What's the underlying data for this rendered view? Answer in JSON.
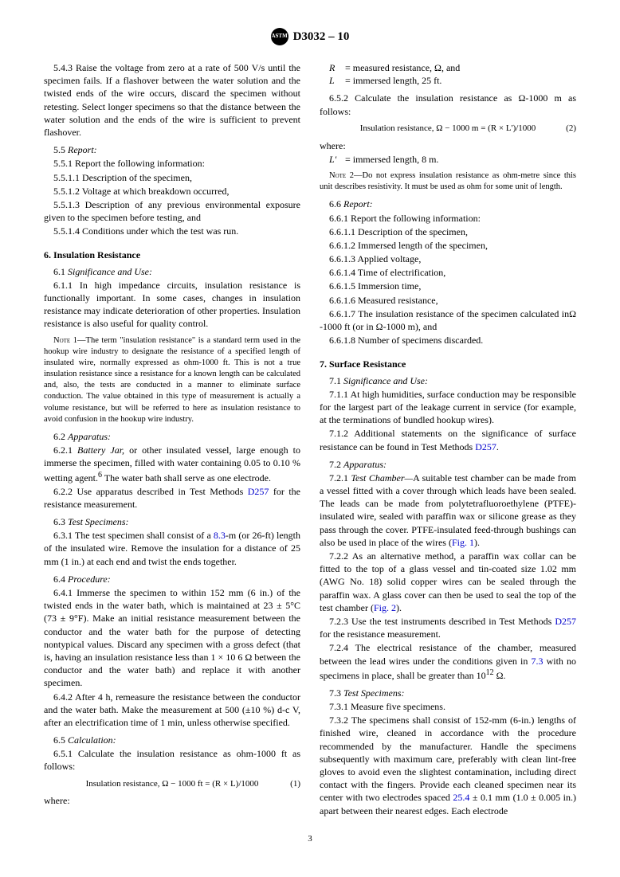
{
  "header": {
    "designation": "D3032 – 10"
  },
  "page_number": "3",
  "col1": {
    "p543": "5.4.3 Raise the voltage from zero at a rate of 500 V/s until the specimen fails. If a flashover between the water solution and the twisted ends of the wire occurs, discard the specimen without retesting. Select longer specimens so that the distance between the water solution and the ends of the wire is sufficient to prevent flashover.",
    "p55": "5.5 ",
    "p55i": "Report:",
    "p551": "5.5.1 Report the following information:",
    "p5511": "5.5.1.1 Description of the specimen,",
    "p5512": "5.5.1.2 Voltage at which breakdown occurred,",
    "p5513": "5.5.1.3 Description of any previous environmental exposure given to the specimen before testing, and",
    "p5514": "5.5.1.4 Conditions under which the test was run.",
    "h6": "6. Insulation Resistance",
    "p61": "6.1 ",
    "p61i": "Significance and Use:",
    "p611": "6.1.1 In high impedance circuits, insulation resistance is functionally important. In some cases, changes in insulation resistance may indicate deterioration of other properties. Insulation resistance is also useful for quality control.",
    "note1_label": "Note 1—",
    "note1": "The term \"insulation resistance\" is a standard term used in the hookup wire industry to designate the resistance of a specified length of insulated wire, normally expressed as ohm-1000 ft. This is not a true insulation resistance since a resistance for a known length can be calculated and, also, the tests are conducted in a manner to eliminate surface conduction. The value obtained in this type of measurement is actually a volume resistance, but will be referred to here as insulation resistance to avoid confusion in the hookup wire industry.",
    "p62": "6.2 ",
    "p62i": "Apparatus:",
    "p621a": "6.2.1 ",
    "p621b": "Battery Jar,",
    "p621c": " or other insulated vessel, large enough to immerse the specimen, filled with water containing 0.05 to 0.10 % wetting agent.",
    "p621sup": "6",
    "p621d": " The water bath shall serve as one electrode.",
    "p622a": "6.2.2 Use apparatus described in Test Methods ",
    "p622link": "D257",
    "p622b": " for the resistance measurement.",
    "p63": "6.3 ",
    "p63i": "Test Specimens:",
    "p631a": "6.3.1 The test specimen shall consist of a ",
    "p631link": "8.3",
    "p631b": "-m (or 26-ft) length of the insulated wire. Remove the insulation for a distance of 25 mm (1 in.) at each end and twist the ends together.",
    "p64": "6.4 ",
    "p64i": "Procedure:",
    "p641": "6.4.1 Immerse the specimen to within 152 mm (6 in.) of the twisted ends in the water bath, which is maintained at 23 ± 5°C (73 ± 9°F). Make an initial resistance measurement between the conductor and the water bath for the purpose of detecting nontypical values. Discard any specimen with a gross defect (that is, having an insulation resistance less than 1 × 10 6 Ω between the conductor and the water bath) and replace it with another specimen.",
    "p642": "6.4.2 After 4 h, remeasure the resistance between the conductor and the water bath. Make the measurement at 500 (±10 %) d-c V, after an electrification time of 1 min, unless otherwise specified.",
    "p65": "6.5 ",
    "p65i": "Calculation:",
    "p651": "6.5.1 Calculate the insulation resistance as ohm-1000 ft as follows:",
    "eq1": "Insulation resistance, Ω − 1000 ft = (R × L)/1000",
    "eq1num": "(1)"
  },
  "col2": {
    "where1": "where:",
    "w1r": "R",
    "w1r_def": "= measured resistance, Ω, and",
    "w1l": "L",
    "w1l_def": "= immersed length, 25 ft.",
    "p652": "6.5.2 Calculate the insulation resistance as Ω-1000 m as follows:",
    "eq2": "Insulation resistance, Ω − 1000 m = (R × L')/1000",
    "eq2num": "(2)",
    "where2": "where:",
    "w2l": "L'",
    "w2l_def": "= immersed length, 8 m.",
    "note2_label": "Note 2—",
    "note2": "Do not express insulation resistance as ohm-metre since this unit describes resistivity. It must be used as ohm for some unit of length.",
    "p66": "6.6 ",
    "p66i": "Report:",
    "p661": "6.6.1 Report the following information:",
    "p6611": "6.6.1.1 Description of the specimen,",
    "p6612": "6.6.1.2 Immersed length of the specimen,",
    "p6613": "6.6.1.3 Applied voltage,",
    "p6614": "6.6.1.4 Time of electrification,",
    "p6615": "6.6.1.5 Immersion time,",
    "p6616": "6.6.1.6 Measured resistance,",
    "p6617": "6.6.1.7 The insulation resistance of the specimen calculated inΩ -1000 ft (or in Ω-1000 m), and",
    "p6618": "6.6.1.8 Number of specimens discarded.",
    "h7": "7. Surface Resistance",
    "p71": "7.1 ",
    "p71i": "Significance and Use:",
    "p711": "7.1.1 At high humidities, surface conduction may be responsible for the largest part of the leakage current in service (for example, at the terminations of bundled hookup wires).",
    "p712a": "7.1.2 Additional statements on the significance of surface resistance can be found in Test Methods ",
    "p712link": "D257",
    "p712b": ".",
    "p72": "7.2 ",
    "p72i": "Apparatus:",
    "p721a": "7.2.1 ",
    "p721b": "Test Chamber—",
    "p721c": "A suitable test chamber can be made from a vessel fitted with a cover through which leads have been sealed. The leads can be made from polytetrafluoroethylene (PTFE)-insulated wire, sealed with paraffin wax or silicone grease as they pass through the cover. PTFE-insulated feed-through bushings can also be used in place of the wires (",
    "p721link": "Fig. 1",
    "p721d": ").",
    "p722a": "7.2.2 As an alternative method, a paraffin wax collar can be fitted to the top of a glass vessel and tin-coated size 1.02 mm (AWG No. 18) solid copper wires can be sealed through the paraffin wax. A glass cover can then be used to seal the top of the test chamber (",
    "p722link": "Fig. 2",
    "p722b": ").",
    "p723a": "7.2.3 Use the test instruments described in Test Methods ",
    "p723link": "D257",
    "p723b": " for the resistance measurement.",
    "p724a": "7.2.4 The electrical resistance of the chamber, measured between the lead wires under the conditions given in ",
    "p724link": "7.3",
    "p724b": " with no specimens in place, shall be greater than 10",
    "p724sup": "12",
    "p724c": " Ω.",
    "p73": "7.3 ",
    "p73i": "Test Specimens:",
    "p731": "7.3.1 Measure five specimens.",
    "p732a": "7.3.2 The specimens shall consist of 152-mm (6-in.) lengths of finished wire, cleaned in accordance with the procedure recommended by the manufacturer. Handle the specimens subsequently with maximum care, preferably with clean lint-free gloves to avoid even the slightest contamination, including direct contact with the fingers. Provide each cleaned specimen near its center with two electrodes spaced ",
    "p732link": "25.4",
    "p732b": " ± 0.1 mm (1.0 ± 0.005 in.) apart between their nearest edges. Each electrode"
  }
}
